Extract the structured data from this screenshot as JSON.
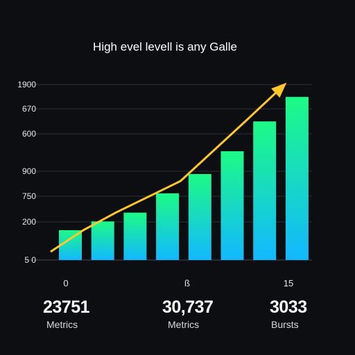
{
  "chart_data": {
    "type": "bar",
    "title": "High evel levell is any Galle",
    "y_tick_labels": [
      "1900",
      "670",
      "600",
      "900",
      "750",
      "200",
      "5 0"
    ],
    "x_tick_labels": [
      "0",
      "ß",
      "15"
    ],
    "series": [
      {
        "values": [
          17,
          22,
          27,
          38,
          49,
          62,
          79,
          93
        ]
      }
    ],
    "trend_line": {
      "values": [
        5,
        17,
        27,
        36,
        45,
        62,
        79,
        100
      ],
      "color": "#ffc72c",
      "arrow": true
    },
    "ylim": [
      0,
      100
    ],
    "grid": "horizontal",
    "colors": {
      "bar_top": "#1dfa86",
      "bar_bottom": "#12b8ff",
      "background": "#0d0e11",
      "grid": "#3a3d44"
    }
  },
  "stats": [
    {
      "value": "23751",
      "label": "Metrics"
    },
    {
      "value": "30,737",
      "label": "Metrics"
    },
    {
      "value": "3033",
      "label": "Bursts"
    }
  ]
}
